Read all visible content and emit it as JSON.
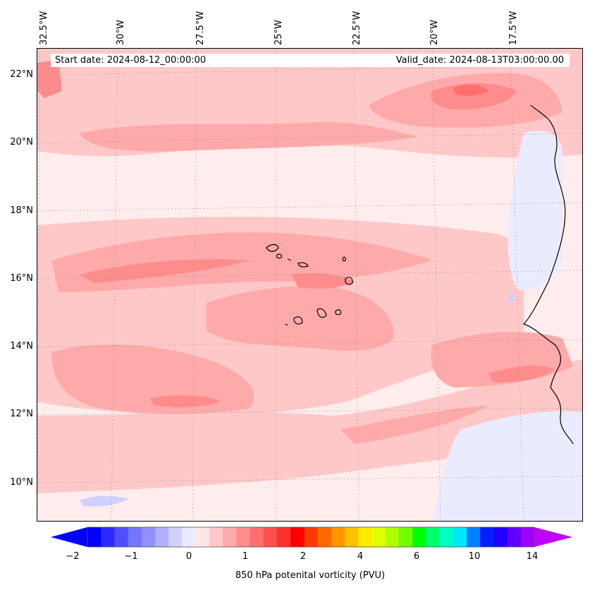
{
  "header": {
    "start_date": "Start date: 2024-08-12_00:00:00",
    "valid_date": "Valid_date: 2024-08-13T03:00:00.00"
  },
  "axes": {
    "longitude_labels": [
      "32.5°W",
      "30°W",
      "27.5°W",
      "25°W",
      "22.5°W",
      "20°W",
      "17.5°W"
    ],
    "latitude_labels": [
      "22°N",
      "20°N",
      "18°N",
      "16°N",
      "14°N",
      "12°N",
      "10°N"
    ]
  },
  "colorbar": {
    "label": "850 hPa potenital vorticity (PVU)",
    "tick_labels": [
      "−2",
      "−1",
      "0",
      "1",
      "2",
      "4",
      "6",
      "10",
      "14"
    ],
    "colors": [
      "#0000ff",
      "#2a2aff",
      "#5050ff",
      "#7474ff",
      "#9090ff",
      "#b0b0ff",
      "#d0d0ff",
      "#ebebff",
      "#ffe6e6",
      "#ffc8c8",
      "#ffaaaa",
      "#ff8c8c",
      "#ff6e6e",
      "#ff5050",
      "#ff3030",
      "#ff0000",
      "#ff3a00",
      "#ff6800",
      "#ff9400",
      "#ffc000",
      "#ffea00",
      "#e0ff00",
      "#b0ff00",
      "#70ff00",
      "#00ff00",
      "#00ff70",
      "#00ffc0",
      "#00e8ff",
      "#0080ff",
      "#0020ff",
      "#2200ff",
      "#6000ff",
      "#a000ff"
    ],
    "low_color": "#0000ff",
    "high_color": "#c000ff"
  },
  "field_colors": {
    "background": "#ffeded",
    "light": "#ffc8c8",
    "medium": "#ffaaaa",
    "strong": "#ff8c8c",
    "core": "#ff6e6e",
    "negative": "#ebebff",
    "negative_strong": "#d0d0ff"
  }
}
